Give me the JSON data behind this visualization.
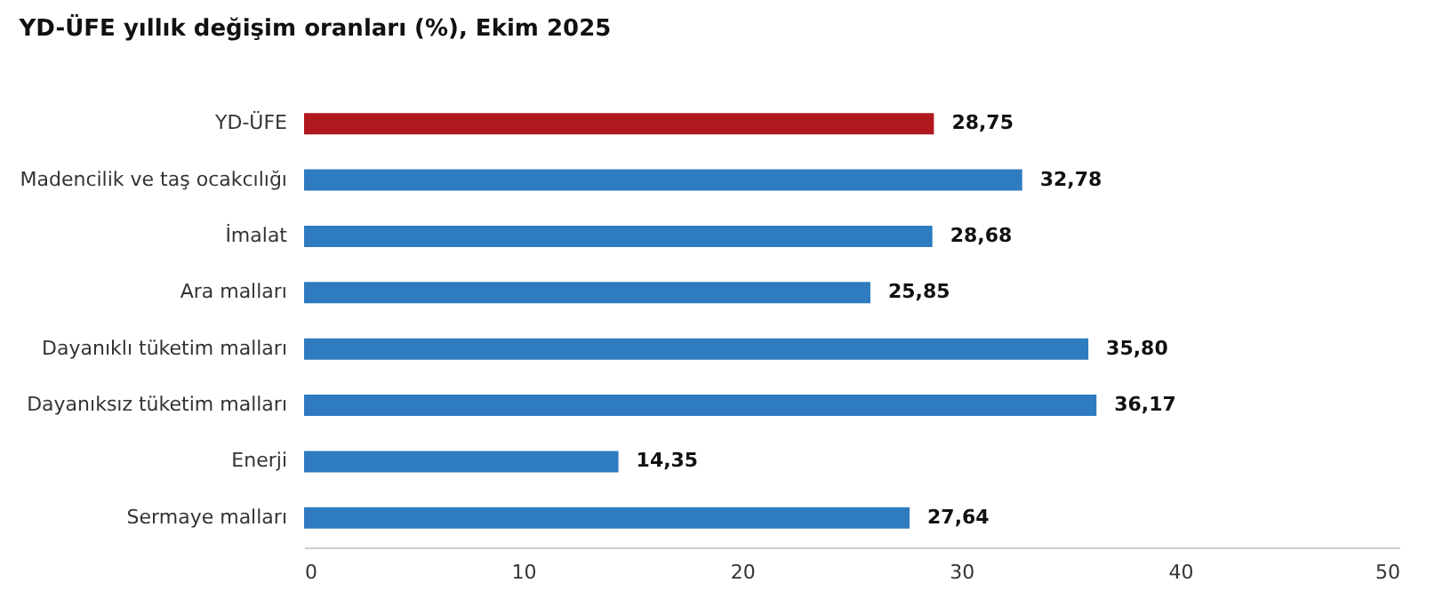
{
  "chart_data": {
    "type": "bar",
    "orientation": "horizontal",
    "title": "YD-ÜFE yıllık değişim oranları (%), Ekim 2025",
    "categories": [
      "YD-ÜFE",
      "Madencilik ve taş ocakcılığı",
      "İmalat",
      "Ara malları",
      "Dayanıklı tüketim malları",
      "Dayanıksız tüketim malları",
      "Enerji",
      "Sermaye malları"
    ],
    "values": [
      28.75,
      32.78,
      28.68,
      25.85,
      35.8,
      36.17,
      14.35,
      27.64
    ],
    "value_labels": [
      "28,75",
      "32,78",
      "28,68",
      "25,85",
      "35,80",
      "36,17",
      "14,35",
      "27,64"
    ],
    "colors": [
      "#b0181e",
      "#2e7bbf",
      "#2e7bbf",
      "#2e7bbf",
      "#2e7bbf",
      "#2e7bbf",
      "#2e7bbf",
      "#2e7bbf"
    ],
    "xlim": [
      0,
      50
    ],
    "xticks": [
      0,
      10,
      20,
      30,
      40,
      50
    ],
    "grid": false
  }
}
